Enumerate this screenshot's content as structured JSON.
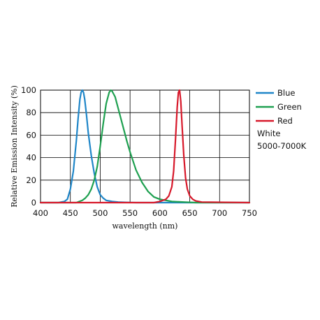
{
  "chart_data": {
    "type": "line",
    "xlabel": "wavelength (nm)",
    "ylabel": "Relative Emission Intensity (%)",
    "xlim": [
      400,
      750
    ],
    "ylim": [
      0,
      100
    ],
    "xticks": [
      "400",
      "450",
      "500",
      "550",
      "600",
      "650",
      "700",
      "750"
    ],
    "yticks": [
      "0",
      "20",
      "40",
      "60",
      "80",
      "100"
    ],
    "grid": true,
    "legend_position": "right",
    "legend_note": [
      "White",
      "5000-7000K"
    ],
    "series": [
      {
        "name": "Blue",
        "color": "#1f86c8",
        "x": [
          400,
          430,
          440,
          445,
          450,
          455,
          460,
          463,
          466,
          468,
          470,
          472,
          474,
          477,
          480,
          485,
          490,
          495,
          500,
          505,
          510,
          520,
          530,
          545,
          560,
          750
        ],
        "y": [
          0,
          0,
          1,
          3,
          12,
          28,
          55,
          75,
          92,
          98,
          100,
          98,
          92,
          78,
          62,
          42,
          26,
          14,
          7,
          4,
          2,
          1,
          0.5,
          0.2,
          0,
          0
        ]
      },
      {
        "name": "Green",
        "color": "#1ea050",
        "x": [
          400,
          460,
          470,
          475,
          480,
          485,
          490,
          495,
          500,
          505,
          510,
          515,
          518,
          520,
          525,
          530,
          535,
          540,
          545,
          550,
          555,
          560,
          570,
          580,
          590,
          600,
          620,
          640,
          660,
          750
        ],
        "y": [
          0,
          0,
          2,
          4,
          7,
          12,
          20,
          32,
          50,
          70,
          88,
          98,
          100,
          99,
          94,
          84,
          74,
          64,
          54,
          45,
          37,
          29,
          18,
          10,
          5,
          3,
          1,
          0.5,
          0,
          0
        ]
      },
      {
        "name": "Red",
        "color": "#d7182a",
        "x": [
          400,
          590,
          600,
          610,
          615,
          620,
          623,
          626,
          629,
          631,
          633,
          635,
          637,
          640,
          643,
          646,
          650,
          655,
          660,
          670,
          750
        ],
        "y": [
          0,
          0,
          1,
          3,
          6,
          14,
          28,
          55,
          85,
          98,
          100,
          90,
          70,
          42,
          22,
          12,
          6,
          3,
          1.5,
          0.5,
          0
        ]
      }
    ]
  }
}
